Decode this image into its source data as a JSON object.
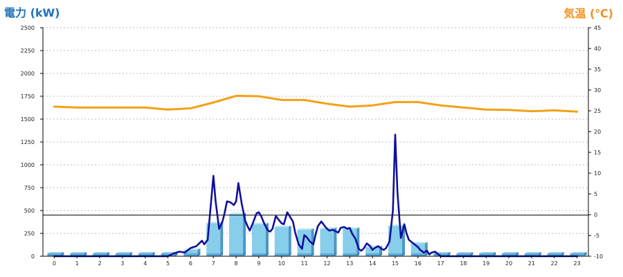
{
  "chart_data": {
    "type": "bar+line",
    "title_left": "電力 (kW)",
    "title_right": "気温 (℃)",
    "categories": [
      "0",
      "1",
      "2",
      "3",
      "4",
      "5",
      "6",
      "7",
      "8",
      "9",
      "10",
      "11",
      "12",
      "13",
      "14",
      "15",
      "16",
      "17",
      "18",
      "19",
      "20",
      "21",
      "22",
      "23"
    ],
    "y_left": {
      "min": 0,
      "max": 2500,
      "ticks": [
        0,
        250,
        500,
        750,
        1000,
        1250,
        1500,
        1750,
        2000,
        2250,
        2500
      ]
    },
    "y_right": {
      "min": -10,
      "max": 45,
      "ticks": [
        -10,
        -5,
        0,
        5,
        10,
        15,
        20,
        25,
        30,
        35,
        40,
        45
      ]
    },
    "reference_line_left": 450,
    "series": [
      {
        "kind": "bar",
        "axis": "left",
        "color": "#87ceeb",
        "values": [
          0,
          0,
          0,
          0,
          0,
          0,
          70,
          360,
          460,
          350,
          320,
          290,
          300,
          300,
          100,
          330,
          140,
          0,
          0,
          0,
          0,
          0,
          0,
          0
        ]
      },
      {
        "kind": "line",
        "axis": "left",
        "color": "#10109a",
        "x": [
          0,
          0.5,
          1,
          1.5,
          2,
          2.5,
          3,
          3.5,
          4,
          4.5,
          5,
          5.25,
          5.5,
          5.75,
          6,
          6.25,
          6.5,
          6.6,
          6.75,
          6.9,
          7,
          7.1,
          7.25,
          7.4,
          7.5,
          7.6,
          7.75,
          7.9,
          8,
          8.1,
          8.25,
          8.4,
          8.5,
          8.6,
          8.75,
          8.9,
          9,
          9.1,
          9.25,
          9.4,
          9.5,
          9.6,
          9.75,
          9.9,
          10,
          10.1,
          10.25,
          10.4,
          10.5,
          10.6,
          10.75,
          10.9,
          11,
          11.1,
          11.25,
          11.4,
          11.5,
          11.6,
          11.75,
          11.9,
          12,
          12.1,
          12.25,
          12.4,
          12.5,
          12.6,
          12.75,
          12.9,
          13,
          13.1,
          13.25,
          13.4,
          13.5,
          13.6,
          13.75,
          13.9,
          14,
          14.1,
          14.25,
          14.4,
          14.5,
          14.6,
          14.75,
          14.9,
          15,
          15.1,
          15.25,
          15.4,
          15.5,
          15.6,
          15.75,
          15.9,
          16,
          16.1,
          16.25,
          16.4,
          16.5,
          16.6,
          16.75,
          16.9,
          17,
          17.5,
          18,
          18.5,
          19,
          19.5,
          20,
          20.5,
          21,
          21.5,
          22,
          22.5,
          23
        ],
        "values": [
          0,
          0,
          0,
          0,
          0,
          0,
          0,
          0,
          0,
          0,
          0,
          30,
          50,
          40,
          90,
          110,
          170,
          130,
          180,
          600,
          880,
          600,
          300,
          380,
          480,
          600,
          590,
          560,
          600,
          800,
          570,
          390,
          330,
          280,
          370,
          470,
          480,
          440,
          350,
          280,
          270,
          300,
          440,
          390,
          360,
          350,
          480,
          420,
          380,
          260,
          130,
          80,
          230,
          210,
          160,
          130,
          240,
          330,
          380,
          330,
          300,
          280,
          290,
          270,
          260,
          310,
          320,
          300,
          310,
          250,
          190,
          80,
          60,
          80,
          140,
          110,
          70,
          90,
          110,
          80,
          70,
          90,
          160,
          500,
          1330,
          700,
          200,
          350,
          250,
          180,
          150,
          120,
          100,
          70,
          40,
          60,
          20,
          40,
          50,
          20,
          0,
          0,
          0,
          0,
          0,
          0,
          0,
          0,
          0,
          0,
          0,
          0,
          0
        ]
      },
      {
        "kind": "line",
        "axis": "right",
        "color": "#f4a016",
        "values": [
          26,
          25.8,
          25.8,
          25.8,
          25.8,
          25.3,
          25.6,
          27,
          28.6,
          28.5,
          27.6,
          27.6,
          26.7,
          26,
          26.3,
          27.1,
          27.1,
          26.3,
          25.8,
          25.3,
          25.2,
          24.9,
          25.1,
          24.8
        ]
      }
    ]
  }
}
